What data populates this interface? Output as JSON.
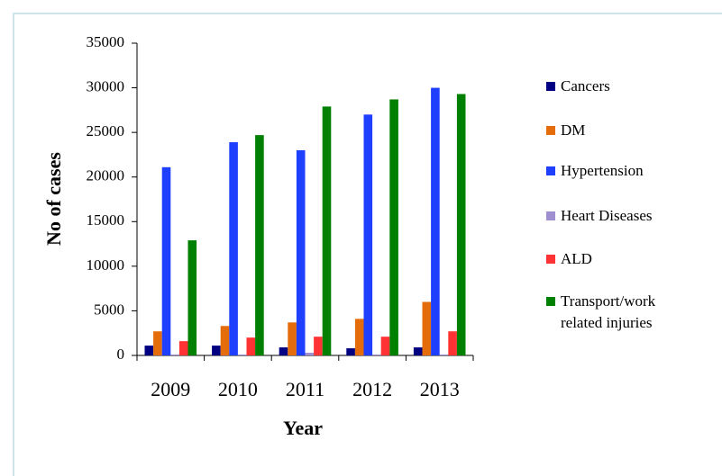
{
  "chart_data": {
    "type": "bar",
    "x_label": "Year",
    "y_label": "No of cases",
    "categories": [
      "2009",
      "2010",
      "2011",
      "2012",
      "2013"
    ],
    "series": [
      {
        "name": "Cancers",
        "color": "#000080",
        "values": [
          1100,
          1100,
          900,
          800,
          900
        ]
      },
      {
        "name": "DM",
        "color": "#e46c0a",
        "values": [
          2700,
          3300,
          3700,
          4100,
          6000
        ]
      },
      {
        "name": "Hypertension",
        "color": "#1f3fff",
        "values": [
          21100,
          23900,
          23000,
          27000,
          30000
        ]
      },
      {
        "name": "Heart Diseases",
        "color": "#a08fd0",
        "values": [
          100,
          100,
          300,
          100,
          100
        ]
      },
      {
        "name": "ALD",
        "color": "#ff3333",
        "values": [
          1600,
          2000,
          2100,
          2100,
          2700
        ]
      },
      {
        "name": "Transport/work related injuries",
        "color": "#008000",
        "values": [
          12900,
          24700,
          27900,
          28700,
          29300
        ]
      }
    ],
    "ylim": [
      0,
      35000
    ],
    "yticks": [
      0,
      5000,
      10000,
      15000,
      20000,
      25000,
      30000,
      35000
    ],
    "grid": false,
    "legend": "right"
  }
}
